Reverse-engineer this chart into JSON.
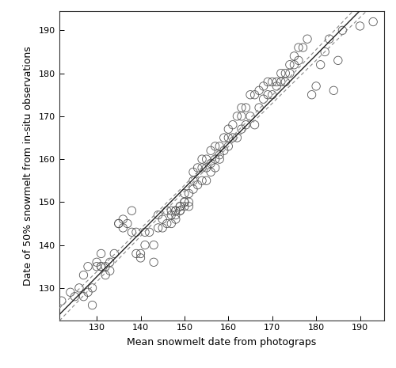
{
  "x": [
    122,
    124,
    125,
    126,
    127,
    127,
    128,
    128,
    129,
    129,
    130,
    130,
    131,
    131,
    131,
    132,
    132,
    133,
    133,
    134,
    135,
    135,
    136,
    136,
    137,
    138,
    138,
    139,
    139,
    140,
    140,
    141,
    141,
    142,
    143,
    143,
    144,
    144,
    145,
    145,
    146,
    146,
    147,
    147,
    147,
    148,
    148,
    148,
    148,
    149,
    149,
    149,
    149,
    150,
    150,
    150,
    150,
    151,
    151,
    151,
    152,
    152,
    152,
    153,
    153,
    154,
    154,
    154,
    155,
    155,
    155,
    156,
    156,
    156,
    157,
    157,
    157,
    158,
    158,
    158,
    159,
    159,
    160,
    160,
    160,
    161,
    161,
    162,
    162,
    163,
    163,
    163,
    164,
    164,
    165,
    165,
    166,
    166,
    167,
    167,
    168,
    168,
    169,
    169,
    170,
    170,
    171,
    171,
    172,
    172,
    173,
    173,
    174,
    174,
    175,
    175,
    176,
    176,
    177,
    178,
    179,
    180,
    181,
    182,
    183,
    184,
    185,
    186,
    190,
    193
  ],
  "y": [
    127,
    129,
    128,
    130,
    128,
    133,
    129,
    135,
    126,
    130,
    135,
    136,
    135,
    135,
    138,
    133,
    135,
    134,
    136,
    138,
    145,
    145,
    144,
    146,
    145,
    143,
    148,
    138,
    143,
    137,
    138,
    140,
    143,
    143,
    136,
    140,
    144,
    147,
    144,
    146,
    145,
    148,
    145,
    147,
    148,
    146,
    147,
    148,
    148,
    148,
    148,
    149,
    149,
    149,
    150,
    150,
    152,
    149,
    150,
    152,
    153,
    155,
    157,
    154,
    158,
    155,
    158,
    160,
    155,
    158,
    160,
    157,
    159,
    162,
    158,
    160,
    163,
    160,
    161,
    163,
    162,
    165,
    163,
    165,
    167,
    165,
    168,
    165,
    170,
    167,
    170,
    172,
    168,
    172,
    170,
    175,
    168,
    175,
    172,
    176,
    174,
    177,
    175,
    178,
    175,
    178,
    178,
    177,
    178,
    180,
    178,
    180,
    180,
    182,
    182,
    184,
    183,
    186,
    186,
    188,
    175,
    177,
    182,
    185,
    188,
    176,
    183,
    190,
    191,
    192
  ],
  "xlabel": "Mean snowmelt date from photograps",
  "ylabel": "Date of 50% snowmelt from in-situ observations",
  "xlim": [
    121.5,
    195.5
  ],
  "ylim": [
    122.5,
    194.5
  ],
  "xticks": [
    130,
    140,
    150,
    160,
    170,
    180,
    190
  ],
  "yticks": [
    130,
    140,
    150,
    160,
    170,
    180,
    190
  ],
  "marker_edgecolor": "#555555",
  "marker_size": 4,
  "line_color": "#222222",
  "ci_color": "#888888",
  "background_color": "#ffffff",
  "figsize": [
    5.0,
    4.65
  ],
  "dpi": 100
}
